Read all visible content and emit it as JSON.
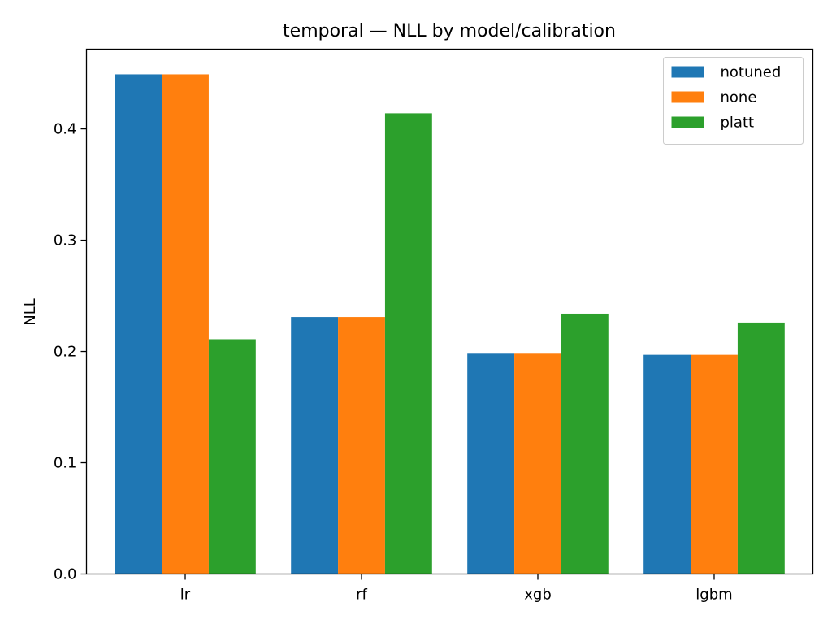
{
  "chart_data": {
    "type": "bar",
    "title": "temporal — NLL by model/calibration",
    "xlabel": "",
    "ylabel": "NLL",
    "categories": [
      "lr",
      "rf",
      "xgb",
      "lgbm"
    ],
    "series": [
      {
        "name": "notuned",
        "color": "#1f77b4",
        "values": [
          0.449,
          0.231,
          0.198,
          0.197
        ]
      },
      {
        "name": "none",
        "color": "#ff7f0e",
        "values": [
          0.449,
          0.231,
          0.198,
          0.197
        ]
      },
      {
        "name": "platt",
        "color": "#2ca02c",
        "values": [
          0.211,
          0.414,
          0.234,
          0.226
        ]
      }
    ],
    "ylim": [
      0,
      0.4716
    ],
    "yticks": [
      0.0,
      0.1,
      0.2,
      0.3,
      0.4
    ],
    "ytick_labels": [
      "0.0",
      "0.1",
      "0.2",
      "0.3",
      "0.4"
    ],
    "grid": false,
    "legend_position": "top-right"
  }
}
